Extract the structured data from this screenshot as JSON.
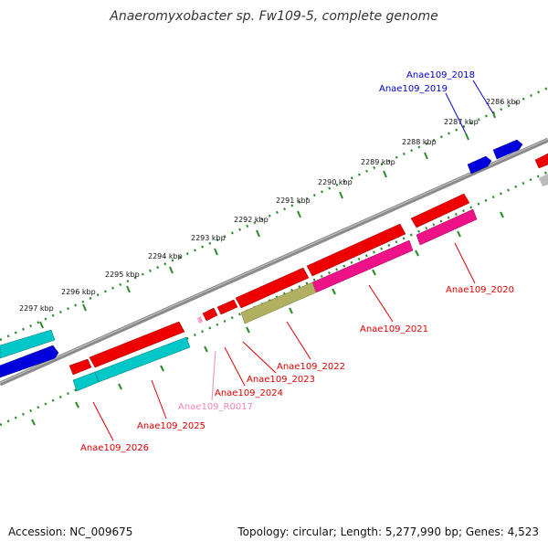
{
  "title": "Anaeromyxobacter sp. Fw109-5, complete genome",
  "footer": {
    "accession": "Accession: NC_009675",
    "summary": "Topology: circular; Length: 5,277,990 bp; Genes: 4,523"
  },
  "colors": {
    "backbone": "#8a8a8a",
    "scale_dots": "#2a8a2a",
    "label_red": "#dd0000",
    "label_blue": "#0000cc",
    "label_pink": "#ee88bb"
  },
  "scale_labels": [
    "2286 kbp",
    "2287 kbp",
    "2288 kbp",
    "2289 kbp",
    "2290 kbp",
    "2291 kbp",
    "2292 kbp",
    "2293 kbp",
    "2294 kbp",
    "2295 kbp",
    "2296 kbp",
    "2297 kbp"
  ],
  "genes": [
    {
      "id": "Anae109_2018",
      "color": "#0000cc"
    },
    {
      "id": "Anae109_2019",
      "color": "#0000cc"
    },
    {
      "id": "Anae109_2020",
      "color": "#dd0000"
    },
    {
      "id": "Anae109_2021",
      "color": "#dd0000"
    },
    {
      "id": "Anae109_2022",
      "color": "#dd0000"
    },
    {
      "id": "Anae109_2023",
      "color": "#dd0000"
    },
    {
      "id": "Anae109_2024",
      "color": "#dd0000"
    },
    {
      "id": "Anae109_R0017",
      "color": "#ee88bb"
    },
    {
      "id": "Anae109_2025",
      "color": "#dd0000"
    },
    {
      "id": "Anae109_2026",
      "color": "#dd0000"
    }
  ]
}
